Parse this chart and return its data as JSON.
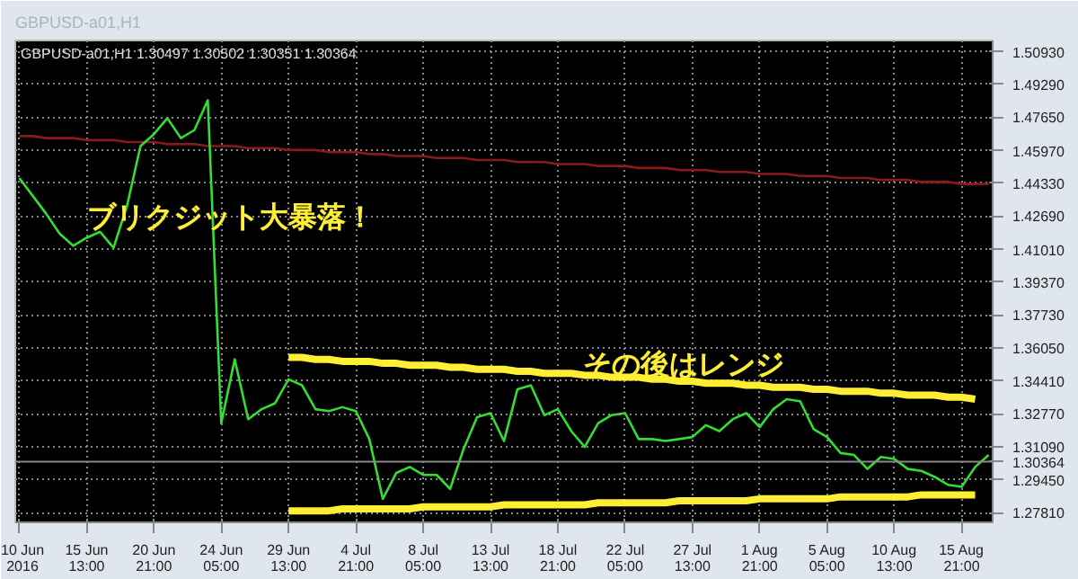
{
  "chart_data": {
    "type": "line",
    "title": "GBPUSD-a01,H1",
    "subtitle": "GBPUSD-a01,H1  1.30497 1.30502 1.30351 1.30364",
    "categories": [
      "10 Jun 2016",
      null,
      null,
      null,
      null,
      "15 Jun 13:00",
      null,
      null,
      null,
      null,
      "20 Jun 21:00",
      null,
      null,
      null,
      null,
      "24 Jun 05:00",
      null,
      null,
      null,
      null,
      "29 Jun 13:00",
      null,
      null,
      null,
      null,
      "4 Jul 21:00",
      null,
      null,
      null,
      null,
      "8 Jul 05:00",
      null,
      null,
      null,
      null,
      "13 Jul 13:00",
      null,
      null,
      null,
      null,
      "18 Jul 21:00",
      null,
      null,
      null,
      null,
      "22 Jul 05:00",
      null,
      null,
      null,
      null,
      "27 Jul 13:00",
      null,
      null,
      null,
      null,
      "1 Aug 21:00",
      null,
      null,
      null,
      null,
      "5 Aug 05:00",
      null,
      null,
      null,
      null,
      "10 Aug 13:00",
      null,
      null,
      null,
      null,
      "15 Aug 21:00",
      null,
      null
    ],
    "ylim": [
      1.2732,
      1.515
    ],
    "yticks": [
      {
        "value": 1.2781,
        "label": "1.27810"
      },
      {
        "value": 1.2945,
        "label": "1.29450"
      },
      {
        "value": 1.3109,
        "label": "1.31090"
      },
      {
        "value": 1.3277,
        "label": "1.32770"
      },
      {
        "value": 1.3441,
        "label": "1.34410"
      },
      {
        "value": 1.3605,
        "label": "1.36050"
      },
      {
        "value": 1.3773,
        "label": "1.37730"
      },
      {
        "value": 1.3937,
        "label": "1.39370"
      },
      {
        "value": 1.4101,
        "label": "1.41010"
      },
      {
        "value": 1.4269,
        "label": "1.42690"
      },
      {
        "value": 1.4433,
        "label": "1.44330"
      },
      {
        "value": 1.4597,
        "label": "1.45970"
      },
      {
        "value": 1.4765,
        "label": "1.47650"
      },
      {
        "value": 1.4929,
        "label": "1.49290"
      },
      {
        "value": 1.5093,
        "label": "1.50930"
      }
    ],
    "grid": true,
    "series": [
      {
        "color": "#8b1a1a",
        "values": [
          1.467,
          1.467,
          1.466,
          1.466,
          1.466,
          1.465,
          1.465,
          1.465,
          1.464,
          1.464,
          1.464,
          1.463,
          1.463,
          1.463,
          1.462,
          1.462,
          1.462,
          1.461,
          1.461,
          1.461,
          1.46,
          1.46,
          1.46,
          1.459,
          1.459,
          1.459,
          1.458,
          1.458,
          1.457,
          1.457,
          1.457,
          1.456,
          1.456,
          1.456,
          1.455,
          1.455,
          1.455,
          1.454,
          1.454,
          1.454,
          1.453,
          1.453,
          1.453,
          1.452,
          1.452,
          1.452,
          1.451,
          1.451,
          1.451,
          1.45,
          1.45,
          1.45,
          1.449,
          1.449,
          1.449,
          1.448,
          1.448,
          1.448,
          1.447,
          1.447,
          1.447,
          1.446,
          1.446,
          1.446,
          1.445,
          1.445,
          1.445,
          1.444,
          1.444,
          1.444,
          1.443,
          1.443,
          1.443
        ]
      },
      {
        "color": "#33dd33",
        "values": [
          1.446,
          1.437,
          1.428,
          1.418,
          1.412,
          1.416,
          1.419,
          1.411,
          1.432,
          1.462,
          1.468,
          1.476,
          1.466,
          1.47,
          1.485,
          1.323,
          1.355,
          1.325,
          1.33,
          1.333,
          1.345,
          1.342,
          1.33,
          1.329,
          1.331,
          1.329,
          1.315,
          1.285,
          1.298,
          1.301,
          1.297,
          1.297,
          1.29,
          1.31,
          1.326,
          1.328,
          1.314,
          1.34,
          1.342,
          1.327,
          1.33,
          1.319,
          1.311,
          1.323,
          1.327,
          1.328,
          1.315,
          1.315,
          1.314,
          1.315,
          1.316,
          1.322,
          1.319,
          1.325,
          1.328,
          1.321,
          1.33,
          1.335,
          1.334,
          1.32,
          1.316,
          1.308,
          1.307,
          1.3,
          1.306,
          1.305,
          1.3,
          1.299,
          1.296,
          1.292,
          1.291,
          1.301,
          1.307
        ]
      },
      {
        "color": "#ffee33",
        "values": [
          null,
          null,
          null,
          null,
          null,
          null,
          null,
          null,
          null,
          null,
          null,
          null,
          null,
          null,
          null,
          null,
          null,
          null,
          null,
          null,
          1.356,
          1.356,
          1.355,
          1.355,
          1.354,
          1.354,
          1.354,
          1.353,
          1.353,
          1.352,
          1.352,
          1.352,
          1.351,
          1.351,
          1.35,
          1.35,
          1.35,
          1.349,
          1.349,
          1.348,
          1.348,
          1.348,
          1.347,
          1.347,
          1.346,
          1.346,
          1.346,
          1.345,
          1.345,
          1.344,
          1.344,
          1.343,
          1.343,
          1.343,
          1.342,
          1.342,
          1.341,
          1.341,
          1.341,
          1.34,
          1.34,
          1.339,
          1.339,
          1.339,
          1.338,
          1.338,
          1.337,
          1.337,
          1.337,
          1.336,
          1.336,
          1.335,
          null
        ]
      },
      {
        "color": "#ffee33",
        "values": [
          null,
          null,
          null,
          null,
          null,
          null,
          null,
          null,
          null,
          null,
          null,
          null,
          null,
          null,
          null,
          null,
          null,
          null,
          null,
          null,
          1.279,
          1.279,
          1.279,
          1.279,
          1.28,
          1.28,
          1.28,
          1.28,
          1.28,
          1.28,
          1.281,
          1.281,
          1.281,
          1.281,
          1.281,
          1.281,
          1.282,
          1.282,
          1.282,
          1.282,
          1.282,
          1.282,
          1.282,
          1.283,
          1.283,
          1.283,
          1.283,
          1.283,
          1.283,
          1.284,
          1.284,
          1.284,
          1.284,
          1.284,
          1.284,
          1.285,
          1.285,
          1.285,
          1.285,
          1.285,
          1.285,
          1.286,
          1.286,
          1.286,
          1.286,
          1.286,
          1.286,
          1.287,
          1.287,
          1.287,
          1.287,
          1.287,
          null
        ]
      }
    ],
    "ref_lines": [
      {
        "axis": "y",
        "value": 1.30364,
        "label": "1.30364",
        "color": "#888888"
      }
    ],
    "annotations": [
      "ブリクジット大暴落！",
      "その後はレンジ"
    ]
  }
}
